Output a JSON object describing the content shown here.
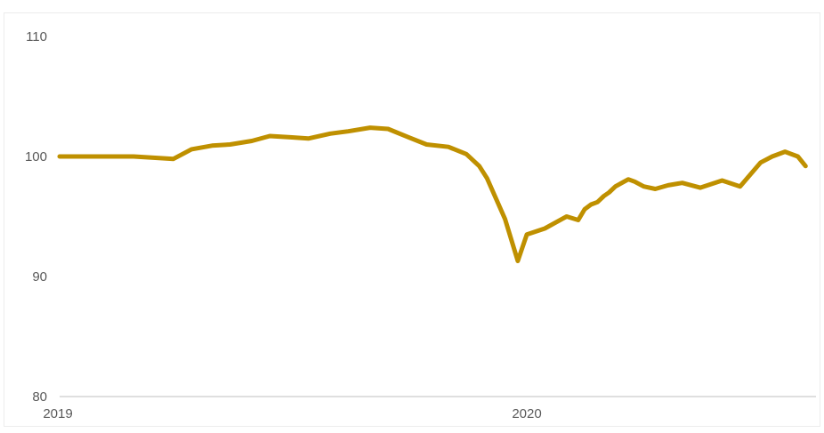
{
  "chart_data": {
    "type": "line",
    "title": "",
    "xlabel": "",
    "ylabel": "",
    "ylim": [
      80,
      110
    ],
    "y_ticks": [
      "110",
      "100",
      "90",
      "80"
    ],
    "x_ticks": [
      {
        "label": "2019",
        "date": "2019-01-01"
      },
      {
        "label": "2020",
        "date": "2020-01-01"
      }
    ],
    "xlim": [
      "2019-01-01",
      "2020-08-08"
    ],
    "grid": false,
    "legend": "none",
    "color": "#BF9000",
    "series": [
      {
        "x": [
          "2019-01-01",
          "2019-02-01",
          "2019-03-01",
          "2019-04-01",
          "2019-04-15",
          "2019-05-01",
          "2019-05-15",
          "2019-06-01",
          "2019-06-15",
          "2019-07-01",
          "2019-07-15",
          "2019-08-01",
          "2019-08-15",
          "2019-09-01",
          "2019-09-15",
          "2019-10-01",
          "2019-10-15",
          "2019-11-01",
          "2019-11-15",
          "2019-11-25",
          "2019-12-01",
          "2019-12-15",
          "2019-12-25",
          "2020-01-01",
          "2020-01-15",
          "2020-02-01",
          "2020-02-10",
          "2020-02-15",
          "2020-02-20",
          "2020-02-25",
          "2020-03-01",
          "2020-03-05",
          "2020-03-10",
          "2020-03-15",
          "2020-03-20",
          "2020-03-25",
          "2020-04-01",
          "2020-04-10",
          "2020-04-20",
          "2020-05-01",
          "2020-05-15",
          "2020-06-01",
          "2020-06-15",
          "2020-07-01",
          "2020-07-10",
          "2020-07-20",
          "2020-07-30",
          "2020-08-05"
        ],
        "values": [
          100.0,
          100.0,
          100.0,
          99.8,
          100.6,
          100.9,
          101.0,
          101.3,
          101.7,
          101.6,
          101.5,
          101.9,
          102.1,
          102.4,
          102.3,
          101.6,
          101.0,
          100.8,
          100.2,
          99.2,
          98.2,
          94.8,
          91.3,
          93.5,
          94.0,
          95.0,
          94.7,
          95.6,
          96.0,
          96.2,
          96.7,
          97.0,
          97.5,
          97.8,
          98.1,
          97.9,
          97.5,
          97.3,
          97.6,
          97.8,
          97.4,
          98.0,
          97.5,
          99.5,
          100.0,
          100.4,
          100.0,
          99.2
        ]
      }
    ]
  }
}
